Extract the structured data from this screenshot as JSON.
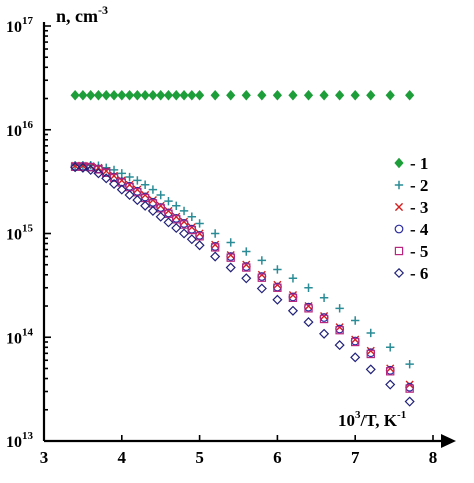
{
  "chart_data": {
    "type": "scatter",
    "title": "",
    "ylabel": "n, cm",
    "ylabel_sup": "-3",
    "xlabel_base": "10",
    "xlabel_sup": "3",
    "xlabel_rest": "/T, K",
    "xlabel_sup2": "-1",
    "xlim": [
      3,
      8
    ],
    "ylim": [
      10000000000000.0,
      1e+17
    ],
    "yscale": "log",
    "x_ticks": [
      "3",
      "4",
      "5",
      "6",
      "7",
      "8"
    ],
    "y_ticks": [
      {
        "base": "10",
        "exp": "13",
        "value": 10000000000000.0
      },
      {
        "base": "10",
        "exp": "14",
        "value": 100000000000000.0
      },
      {
        "base": "10",
        "exp": "15",
        "value": 1000000000000000.0
      },
      {
        "base": "10",
        "exp": "16",
        "value": 1e+16
      },
      {
        "base": "10",
        "exp": "17",
        "value": 1e+17
      }
    ],
    "legend_position": "right",
    "series": [
      {
        "name": "- 1",
        "marker": "diamond-filled",
        "color": "#1e9e3a",
        "points": [
          [
            3.4,
            2.15e+16
          ],
          [
            3.5,
            2.15e+16
          ],
          [
            3.6,
            2.15e+16
          ],
          [
            3.7,
            2.15e+16
          ],
          [
            3.8,
            2.15e+16
          ],
          [
            3.9,
            2.15e+16
          ],
          [
            4.0,
            2.15e+16
          ],
          [
            4.1,
            2.15e+16
          ],
          [
            4.2,
            2.15e+16
          ],
          [
            4.3,
            2.15e+16
          ],
          [
            4.4,
            2.15e+16
          ],
          [
            4.5,
            2.15e+16
          ],
          [
            4.6,
            2.15e+16
          ],
          [
            4.7,
            2.15e+16
          ],
          [
            4.8,
            2.15e+16
          ],
          [
            4.9,
            2.15e+16
          ],
          [
            5.0,
            2.15e+16
          ],
          [
            5.2,
            2.15e+16
          ],
          [
            5.4,
            2.15e+16
          ],
          [
            5.6,
            2.15e+16
          ],
          [
            5.8,
            2.15e+16
          ],
          [
            6.0,
            2.15e+16
          ],
          [
            6.2,
            2.15e+16
          ],
          [
            6.4,
            2.15e+16
          ],
          [
            6.6,
            2.15e+16
          ],
          [
            6.8,
            2.15e+16
          ],
          [
            7.0,
            2.15e+16
          ],
          [
            7.2,
            2.15e+16
          ],
          [
            7.45,
            2.15e+16
          ],
          [
            7.7,
            2.15e+16
          ]
        ]
      },
      {
        "name": "- 2",
        "marker": "plus",
        "color": "#2a8c96",
        "points": [
          [
            3.4,
            4550000000000000.0
          ],
          [
            3.5,
            4550000000000000.0
          ],
          [
            3.6,
            4550000000000000.0
          ],
          [
            3.7,
            4500000000000000.0
          ],
          [
            3.8,
            4300000000000000.0
          ],
          [
            3.9,
            4100000000000000.0
          ],
          [
            4.0,
            3800000000000000.0
          ],
          [
            4.1,
            3500000000000000.0
          ],
          [
            4.2,
            3250000000000000.0
          ],
          [
            4.3,
            2950000000000000.0
          ],
          [
            4.4,
            2650000000000000.0
          ],
          [
            4.5,
            2350000000000000.0
          ],
          [
            4.6,
            2050000000000000.0
          ],
          [
            4.7,
            1850000000000000.0
          ],
          [
            4.8,
            1650000000000000.0
          ],
          [
            4.9,
            1450000000000000.0
          ],
          [
            5.0,
            1250000000000000.0
          ],
          [
            5.2,
            1000000000000000.0
          ],
          [
            5.4,
            820000000000000.0
          ],
          [
            5.6,
            670000000000000.0
          ],
          [
            5.8,
            550000000000000.0
          ],
          [
            6.0,
            450000000000000.0
          ],
          [
            6.2,
            370000000000000.0
          ],
          [
            6.4,
            300000000000000.0
          ],
          [
            6.6,
            240000000000000.0
          ],
          [
            6.8,
            190000000000000.0
          ],
          [
            7.0,
            145000000000000.0
          ],
          [
            7.2,
            110000000000000.0
          ],
          [
            7.45,
            80000000000000.0
          ],
          [
            7.7,
            55000000000000.0
          ]
        ]
      },
      {
        "name": "- 3",
        "marker": "x",
        "color": "#d42020",
        "points": [
          [
            3.4,
            4500000000000000.0
          ],
          [
            3.5,
            4500000000000000.0
          ],
          [
            3.6,
            4450000000000000.0
          ],
          [
            3.7,
            4300000000000000.0
          ],
          [
            3.8,
            4000000000000000.0
          ],
          [
            3.9,
            3600000000000000.0
          ],
          [
            4.0,
            3250000000000000.0
          ],
          [
            4.1,
            2950000000000000.0
          ],
          [
            4.2,
            2650000000000000.0
          ],
          [
            4.3,
            2350000000000000.0
          ],
          [
            4.4,
            2100000000000000.0
          ],
          [
            4.5,
            1850000000000000.0
          ],
          [
            4.6,
            1650000000000000.0
          ],
          [
            4.7,
            1450000000000000.0
          ],
          [
            4.8,
            1300000000000000.0
          ],
          [
            4.9,
            1150000000000000.0
          ],
          [
            5.0,
            1000000000000000.0
          ],
          [
            5.2,
            780000000000000.0
          ],
          [
            5.4,
            620000000000000.0
          ],
          [
            5.6,
            500000000000000.0
          ],
          [
            5.8,
            400000000000000.0
          ],
          [
            6.0,
            320000000000000.0
          ],
          [
            6.2,
            255000000000000.0
          ],
          [
            6.4,
            200000000000000.0
          ],
          [
            6.6,
            160000000000000.0
          ],
          [
            6.8,
            125000000000000.0
          ],
          [
            7.0,
            95000000000000.0
          ],
          [
            7.2,
            74000000000000.0
          ],
          [
            7.45,
            50000000000000.0
          ],
          [
            7.7,
            35000000000000.0
          ]
        ]
      },
      {
        "name": "- 4",
        "marker": "circle",
        "color": "#2a2a9e",
        "points": [
          [
            3.4,
            4450000000000000.0
          ],
          [
            3.5,
            4450000000000000.0
          ],
          [
            3.6,
            4400000000000000.0
          ],
          [
            3.7,
            4200000000000000.0
          ],
          [
            3.8,
            3900000000000000.0
          ],
          [
            3.9,
            3500000000000000.0
          ],
          [
            4.0,
            3150000000000000.0
          ],
          [
            4.1,
            2850000000000000.0
          ],
          [
            4.2,
            2550000000000000.0
          ],
          [
            4.3,
            2250000000000000.0
          ],
          [
            4.4,
            2000000000000000.0
          ],
          [
            4.5,
            1780000000000000.0
          ],
          [
            4.6,
            1580000000000000.0
          ],
          [
            4.7,
            1400000000000000.0
          ],
          [
            4.8,
            1250000000000000.0
          ],
          [
            4.9,
            1100000000000000.0
          ],
          [
            5.0,
            960000000000000.0
          ],
          [
            5.2,
            750000000000000.0
          ],
          [
            5.4,
            600000000000000.0
          ],
          [
            5.6,
            480000000000000.0
          ],
          [
            5.8,
            385000000000000.0
          ],
          [
            6.0,
            305000000000000.0
          ],
          [
            6.2,
            245000000000000.0
          ],
          [
            6.4,
            195000000000000.0
          ],
          [
            6.6,
            155000000000000.0
          ],
          [
            6.8,
            120000000000000.0
          ],
          [
            7.0,
            92000000000000.0
          ],
          [
            7.2,
            71000000000000.0
          ],
          [
            7.45,
            48000000000000.0
          ],
          [
            7.7,
            33000000000000.0
          ]
        ]
      },
      {
        "name": "- 5",
        "marker": "square",
        "color": "#b8267e",
        "points": [
          [
            3.4,
            4400000000000000.0
          ],
          [
            3.5,
            4400000000000000.0
          ],
          [
            3.6,
            4350000000000000.0
          ],
          [
            3.7,
            4150000000000000.0
          ],
          [
            3.8,
            3850000000000000.0
          ],
          [
            3.9,
            3450000000000000.0
          ],
          [
            4.0,
            3100000000000000.0
          ],
          [
            4.1,
            2800000000000000.0
          ],
          [
            4.2,
            2500000000000000.0
          ],
          [
            4.3,
            2200000000000000.0
          ],
          [
            4.4,
            1950000000000000.0
          ],
          [
            4.5,
            1750000000000000.0
          ],
          [
            4.6,
            1550000000000000.0
          ],
          [
            4.7,
            1370000000000000.0
          ],
          [
            4.8,
            1220000000000000.0
          ],
          [
            4.9,
            1080000000000000.0
          ],
          [
            5.0,
            940000000000000.0
          ],
          [
            5.2,
            735000000000000.0
          ],
          [
            5.4,
            585000000000000.0
          ],
          [
            5.6,
            470000000000000.0
          ],
          [
            5.8,
            375000000000000.0
          ],
          [
            6.0,
            300000000000000.0
          ],
          [
            6.2,
            240000000000000.0
          ],
          [
            6.4,
            190000000000000.0
          ],
          [
            6.6,
            150000000000000.0
          ],
          [
            6.8,
            117000000000000.0
          ],
          [
            7.0,
            90000000000000.0
          ],
          [
            7.2,
            69000000000000.0
          ],
          [
            7.45,
            47000000000000.0
          ],
          [
            7.7,
            32000000000000.0
          ]
        ]
      },
      {
        "name": "- 6",
        "marker": "diamond-open",
        "color": "#22227a",
        "points": [
          [
            3.4,
            4350000000000000.0
          ],
          [
            3.5,
            4300000000000000.0
          ],
          [
            3.6,
            4100000000000000.0
          ],
          [
            3.7,
            3800000000000000.0
          ],
          [
            3.8,
            3400000000000000.0
          ],
          [
            3.9,
            3000000000000000.0
          ],
          [
            4.0,
            2650000000000000.0
          ],
          [
            4.1,
            2350000000000000.0
          ],
          [
            4.2,
            2100000000000000.0
          ],
          [
            4.3,
            1850000000000000.0
          ],
          [
            4.4,
            1650000000000000.0
          ],
          [
            4.5,
            1450000000000000.0
          ],
          [
            4.6,
            1280000000000000.0
          ],
          [
            4.7,
            1130000000000000.0
          ],
          [
            4.8,
            1000000000000000.0
          ],
          [
            4.9,
            880000000000000.0
          ],
          [
            5.0,
            770000000000000.0
          ],
          [
            5.2,
            600000000000000.0
          ],
          [
            5.4,
            470000000000000.0
          ],
          [
            5.6,
            370000000000000.0
          ],
          [
            5.8,
            295000000000000.0
          ],
          [
            6.0,
            230000000000000.0
          ],
          [
            6.2,
            180000000000000.0
          ],
          [
            6.4,
            140000000000000.0
          ],
          [
            6.6,
            108000000000000.0
          ],
          [
            6.8,
            84000000000000.0
          ],
          [
            7.0,
            64000000000000.0
          ],
          [
            7.2,
            49000000000000.0
          ],
          [
            7.45,
            35000000000000.0
          ],
          [
            7.7,
            24000000000000.0
          ]
        ]
      }
    ]
  }
}
